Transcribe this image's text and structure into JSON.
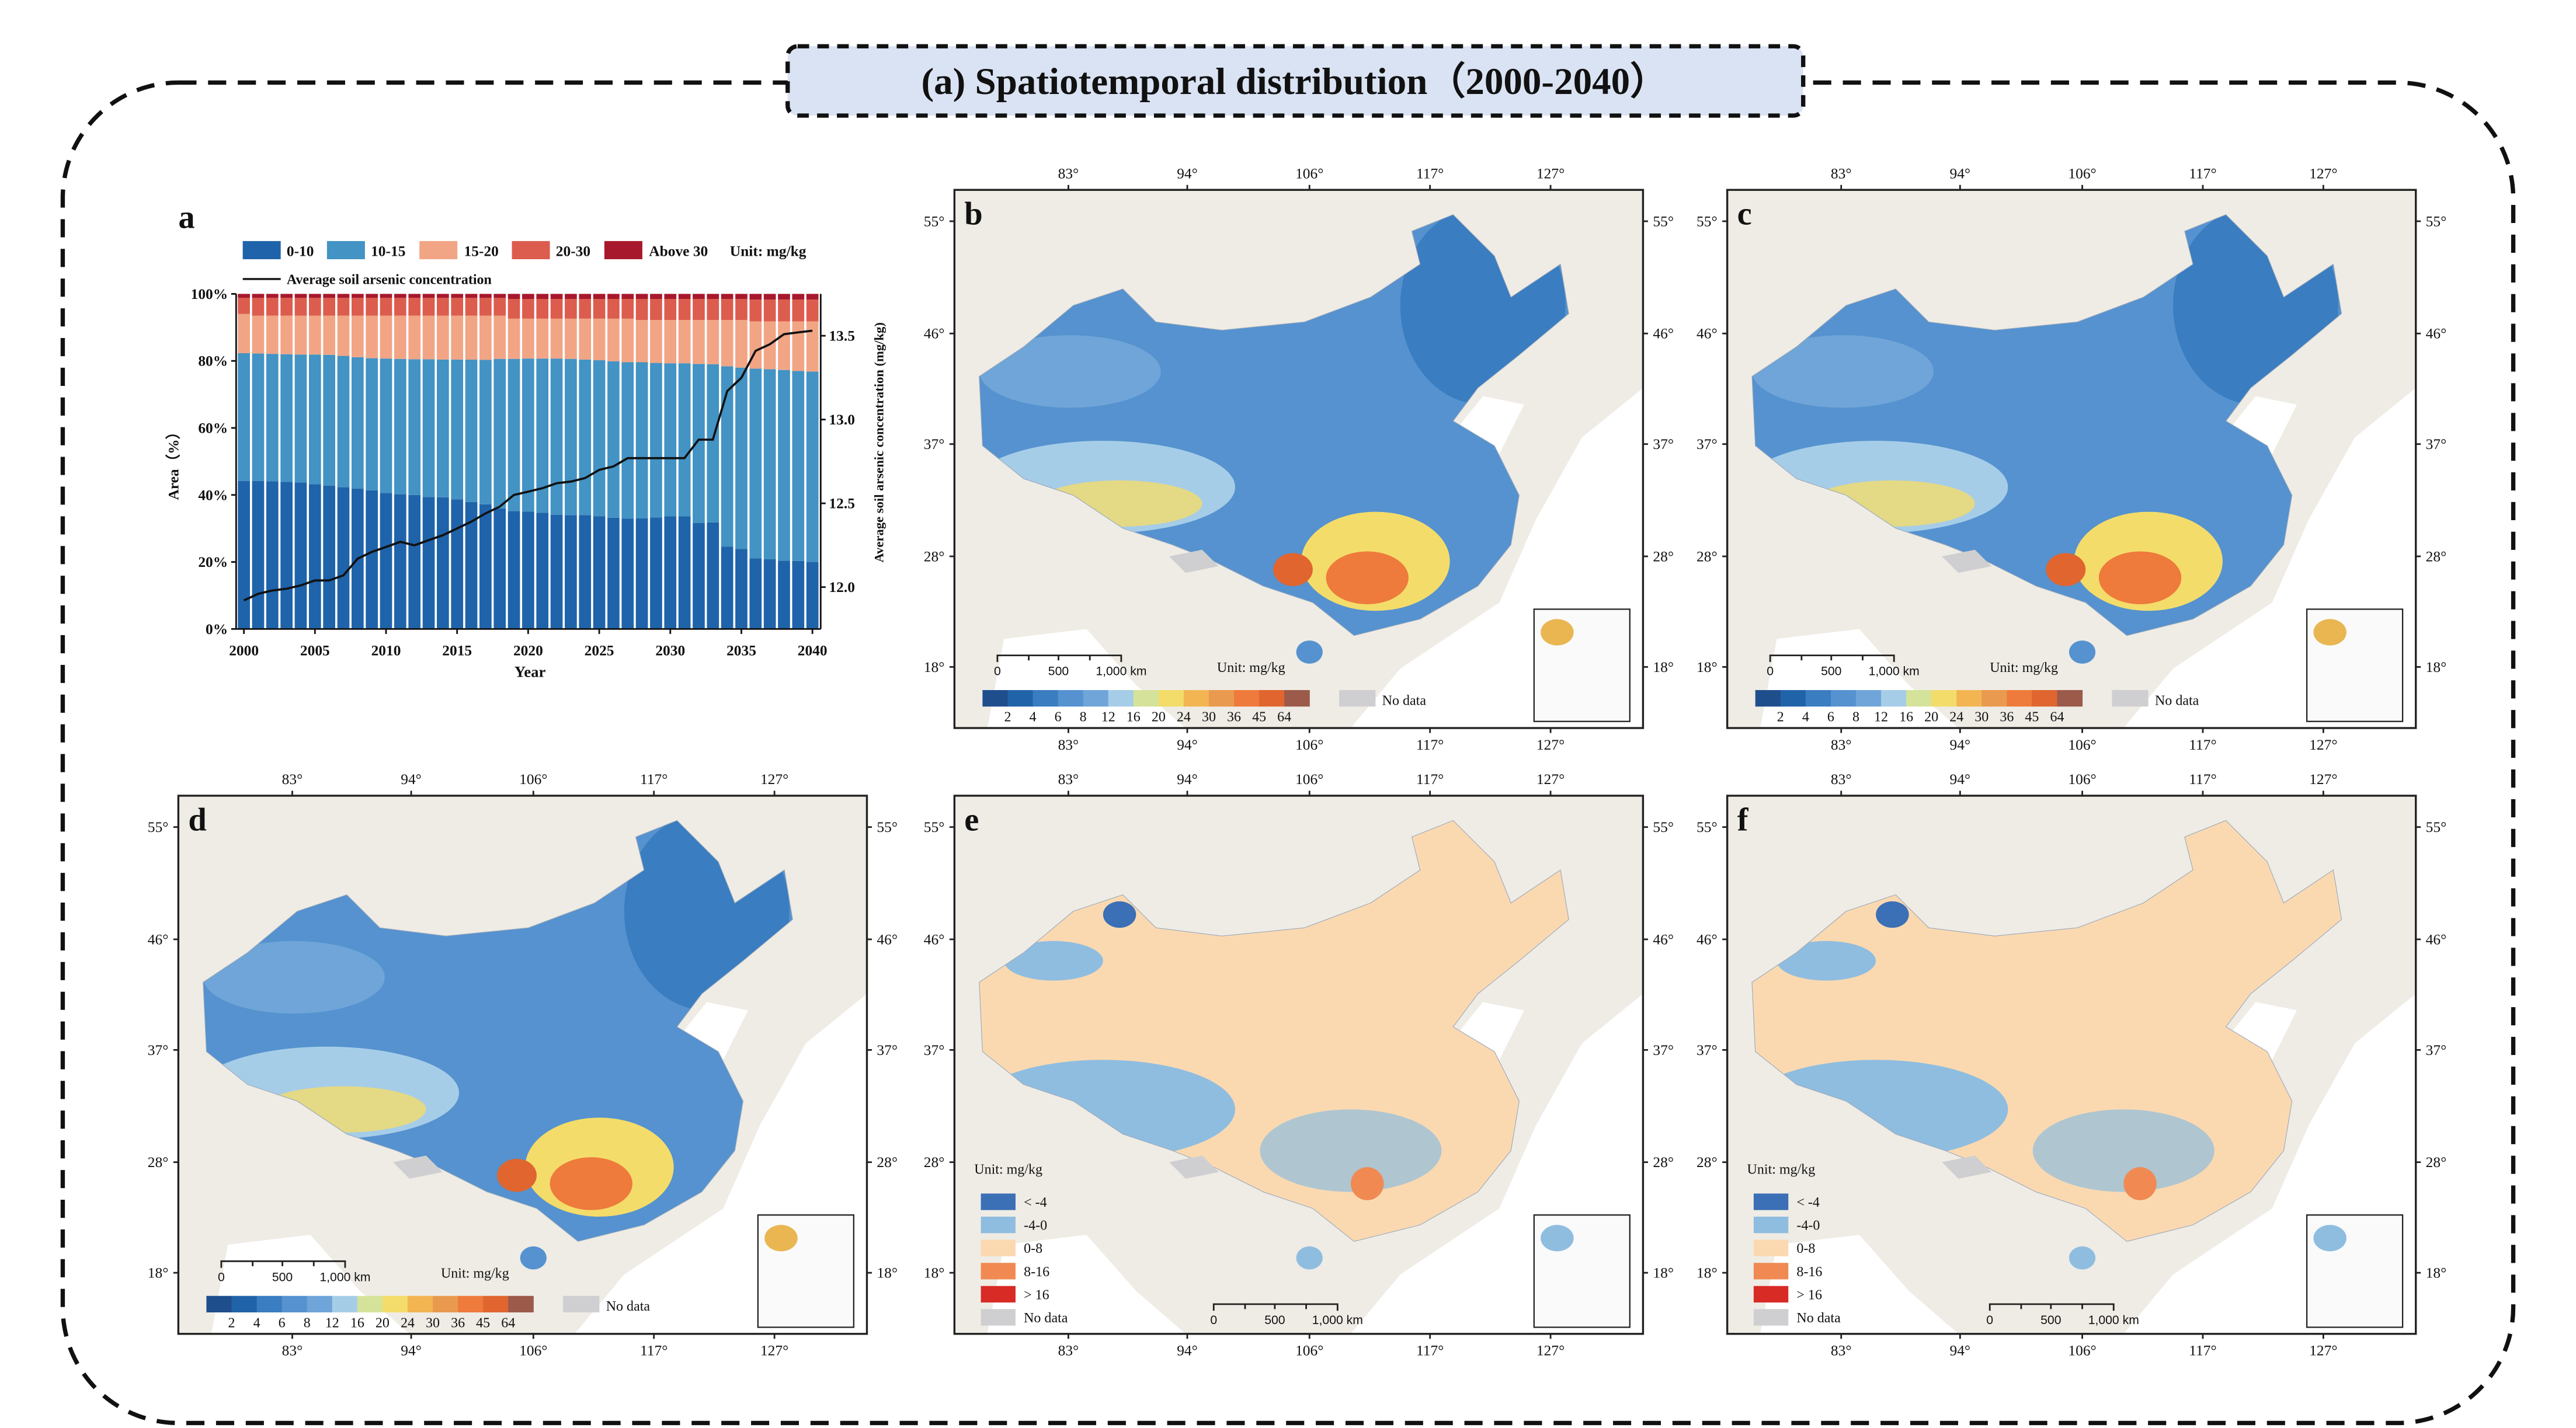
{
  "figure": {
    "title": "(a) Spatiotemporal distribution（2000-2040）",
    "title_bg": "#dae3f3"
  },
  "chart_data": {
    "type": "bar",
    "panel_label": "a",
    "stacked": true,
    "xlabel": "Year",
    "ylabel": "Area（%）",
    "y2label": "Average soil arsenic concentration (mg/kg)",
    "ylim": [
      0,
      100
    ],
    "y2lim": [
      11.75,
      13.75
    ],
    "yticks": [
      "0%",
      "20%",
      "40%",
      "60%",
      "80%",
      "100%"
    ],
    "y2ticks": [
      "12.0",
      "12.5",
      "13.0",
      "13.5"
    ],
    "xticks": [
      "2000",
      "2005",
      "2010",
      "2015",
      "2020",
      "2025",
      "2030",
      "2035",
      "2040"
    ],
    "unit_label": "Unit: mg/kg",
    "categories": [
      2000,
      2001,
      2002,
      2003,
      2004,
      2005,
      2006,
      2007,
      2008,
      2009,
      2010,
      2011,
      2012,
      2013,
      2014,
      2015,
      2016,
      2017,
      2018,
      2019,
      2020,
      2021,
      2022,
      2023,
      2024,
      2025,
      2026,
      2027,
      2028,
      2029,
      2030,
      2031,
      2032,
      2033,
      2034,
      2035,
      2036,
      2037,
      2038,
      2039,
      2040
    ],
    "series": [
      {
        "name": "0-10",
        "color": "#1f63aa",
        "values": [
          44.2,
          44.2,
          44.1,
          43.9,
          43.7,
          43.2,
          42.8,
          42.3,
          41.9,
          41.4,
          40.6,
          40.2,
          40.0,
          39.4,
          39.3,
          38.7,
          37.9,
          37.2,
          36.0,
          35.2,
          35.0,
          34.7,
          34.1,
          34.0,
          34.0,
          33.6,
          33.2,
          32.9,
          33.0,
          33.3,
          33.6,
          33.6,
          31.6,
          31.8,
          24.6,
          23.9,
          21.1,
          20.8,
          20.4,
          20.3,
          20.0
        ]
      },
      {
        "name": "10-15",
        "color": "#4393c4",
        "values": [
          38.1,
          38.0,
          38.0,
          38.1,
          38.2,
          38.7,
          39.0,
          39.2,
          39.2,
          39.4,
          40.1,
          40.4,
          40.5,
          41.1,
          41.1,
          41.7,
          42.5,
          43.1,
          44.6,
          45.4,
          45.7,
          46.0,
          46.6,
          46.6,
          46.4,
          46.6,
          46.7,
          46.7,
          46.6,
          46.1,
          45.7,
          45.7,
          47.5,
          47.2,
          53.8,
          54.1,
          56.6,
          56.7,
          56.9,
          56.7,
          56.8
        ]
      },
      {
        "name": "15-20",
        "color": "#f1a585",
        "values": [
          11.7,
          11.3,
          11.4,
          11.5,
          11.6,
          11.6,
          11.7,
          12.0,
          12.4,
          12.7,
          12.8,
          12.9,
          13.0,
          13.0,
          13.1,
          13.1,
          13.1,
          13.2,
          12.9,
          12.0,
          11.9,
          11.9,
          11.9,
          12.0,
          12.2,
          12.4,
          12.7,
          13.0,
          12.6,
          12.8,
          12.9,
          12.9,
          13.1,
          13.2,
          13.8,
          14.2,
          14.1,
          14.3,
          14.5,
          14.8,
          15.0
        ]
      },
      {
        "name": "20-30",
        "color": "#dc5d4e",
        "values": [
          4.8,
          5.3,
          5.3,
          5.3,
          5.3,
          5.3,
          5.3,
          5.3,
          5.3,
          5.3,
          5.3,
          5.3,
          5.3,
          5.3,
          5.3,
          5.3,
          5.3,
          5.3,
          5.3,
          5.9,
          5.9,
          5.9,
          5.9,
          5.9,
          5.9,
          5.9,
          5.9,
          5.9,
          6.3,
          6.3,
          6.3,
          6.3,
          6.3,
          6.3,
          6.3,
          6.3,
          6.5,
          6.5,
          6.5,
          6.5,
          6.5
        ]
      },
      {
        "name": "Above 30",
        "color": "#a8182c",
        "values": [
          1.2,
          1.2,
          1.2,
          1.2,
          1.2,
          1.2,
          1.2,
          1.2,
          1.2,
          1.2,
          1.2,
          1.2,
          1.2,
          1.2,
          1.2,
          1.2,
          1.2,
          1.2,
          1.2,
          1.5,
          1.5,
          1.5,
          1.5,
          1.5,
          1.5,
          1.5,
          1.5,
          1.5,
          1.5,
          1.5,
          1.5,
          1.5,
          1.5,
          1.5,
          1.5,
          1.5,
          1.7,
          1.7,
          1.7,
          1.7,
          1.7
        ]
      }
    ],
    "line": {
      "name": "Average soil arsenic concentration",
      "color": "#111111",
      "axis": "right",
      "values": [
        11.92,
        11.96,
        11.98,
        11.99,
        12.01,
        12.04,
        12.04,
        12.07,
        12.17,
        12.21,
        12.24,
        12.27,
        12.25,
        12.28,
        12.31,
        12.35,
        12.39,
        12.44,
        12.48,
        12.55,
        12.57,
        12.59,
        12.62,
        12.63,
        12.65,
        12.7,
        12.72,
        12.77,
        12.77,
        12.77,
        12.77,
        12.77,
        12.88,
        12.88,
        13.17,
        13.25,
        13.41,
        13.45,
        13.51,
        13.52,
        13.53
      ]
    },
    "legend_placement": "top"
  },
  "maps": {
    "lat_labels": [
      "55°",
      "46°",
      "37°",
      "28°",
      "18°"
    ],
    "lon_labels": [
      "83°",
      "94°",
      "106°",
      "117°",
      "127°"
    ],
    "unit_label": "Unit: mg/kg",
    "scale_labels": [
      "0",
      "500",
      "1,000 km"
    ],
    "no_data_label": "No data",
    "no_data_color": "#cfcfd1",
    "concentration_legend": {
      "labels": [
        "2",
        "4",
        "6",
        "8",
        "12",
        "16",
        "20",
        "24",
        "30",
        "36",
        "45",
        "64"
      ],
      "colors": [
        "#1f4e8c",
        "#2163a8",
        "#3a7dc0",
        "#5592cf",
        "#6fa5d8",
        "#a6cde8",
        "#d5e39a",
        "#f4dc6a",
        "#f2b552",
        "#e99a4f",
        "#ee7a3c",
        "#e0652f",
        "#9b5a4a"
      ]
    },
    "change_legend": {
      "labels": [
        "< -4",
        "-4-0",
        "0-8",
        "8-16",
        "> 16",
        "No data"
      ],
      "colors": [
        "#3b6fb6",
        "#8fbde0",
        "#fbd9b0",
        "#f08a52",
        "#d92b26",
        "#cfcfd1"
      ]
    },
    "panels": [
      {
        "label": "b",
        "type": "concentration"
      },
      {
        "label": "c",
        "type": "concentration"
      },
      {
        "label": "d",
        "type": "concentration"
      },
      {
        "label": "e",
        "type": "change"
      },
      {
        "label": "f",
        "type": "change"
      }
    ]
  }
}
